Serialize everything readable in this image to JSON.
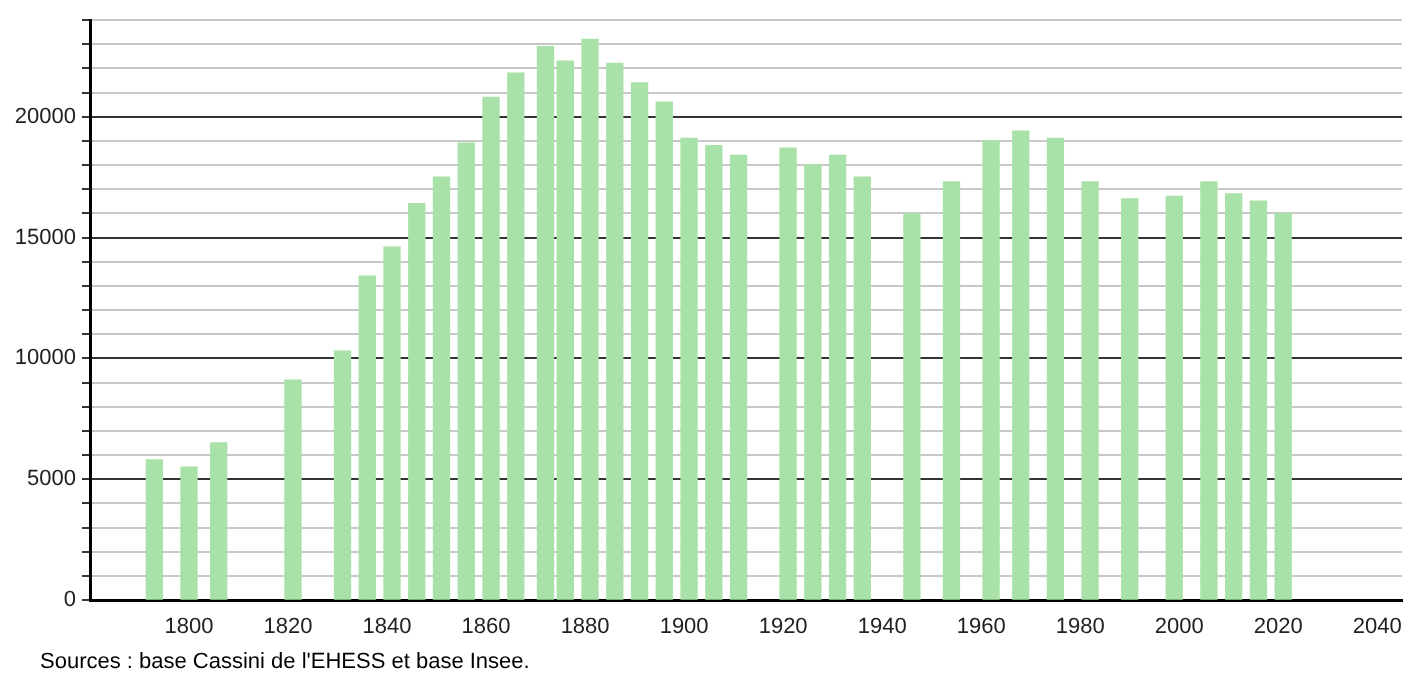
{
  "chart_data": {
    "type": "bar",
    "x": [
      1793,
      1800,
      1806,
      1821,
      1831,
      1836,
      1841,
      1846,
      1851,
      1856,
      1861,
      1866,
      1872,
      1876,
      1881,
      1886,
      1891,
      1896,
      1901,
      1906,
      1911,
      1921,
      1926,
      1931,
      1936,
      1946,
      1954,
      1962,
      1968,
      1975,
      1982,
      1990,
      1999,
      2006,
      2011,
      2016,
      2021
    ],
    "values": [
      5800,
      5500,
      6500,
      9100,
      10300,
      13400,
      14600,
      16400,
      17500,
      18900,
      20800,
      21800,
      22900,
      22300,
      23200,
      22200,
      21400,
      20600,
      19100,
      18800,
      18400,
      18700,
      18000,
      18400,
      17500,
      16000,
      17300,
      19000,
      19400,
      19100,
      17300,
      16600,
      16700,
      17300,
      16800,
      16500,
      16000
    ],
    "color": "#a8e2a8",
    "xlim": [
      1780,
      2045
    ],
    "xticks": [
      1800,
      1820,
      1840,
      1860,
      1880,
      1900,
      1920,
      1940,
      1960,
      1980,
      2000,
      2020,
      2040
    ],
    "ylim": [
      0,
      24000
    ],
    "yticks": [
      0,
      {
        "value": 1000,
        "label": null
      },
      {
        "value": 2000,
        "label": null
      },
      {
        "value": 3000,
        "label": null
      },
      {
        "value": 4000,
        "label": null
      },
      5000,
      {
        "value": 6000,
        "label": null
      },
      {
        "value": 7000,
        "label": null
      },
      {
        "value": 8000,
        "label": null
      },
      {
        "value": 9000,
        "label": null
      },
      10000,
      {
        "value": 11000,
        "label": null
      },
      {
        "value": 12000,
        "label": null
      },
      {
        "value": 13000,
        "label": null
      },
      {
        "value": 14000,
        "label": null
      },
      15000,
      {
        "value": 16000,
        "label": null
      },
      {
        "value": 17000,
        "label": null
      },
      {
        "value": 18000,
        "label": null
      },
      {
        "value": 19000,
        "label": null
      },
      20000,
      {
        "value": 21000,
        "label": null
      },
      {
        "value": 22000,
        "label": null
      },
      {
        "value": 23000,
        "label": null
      },
      {
        "value": 24000,
        "label": null
      }
    ],
    "grid": "y",
    "annotations": [
      "Sources : base Cassini de l'EHESS et base Insee."
    ]
  }
}
